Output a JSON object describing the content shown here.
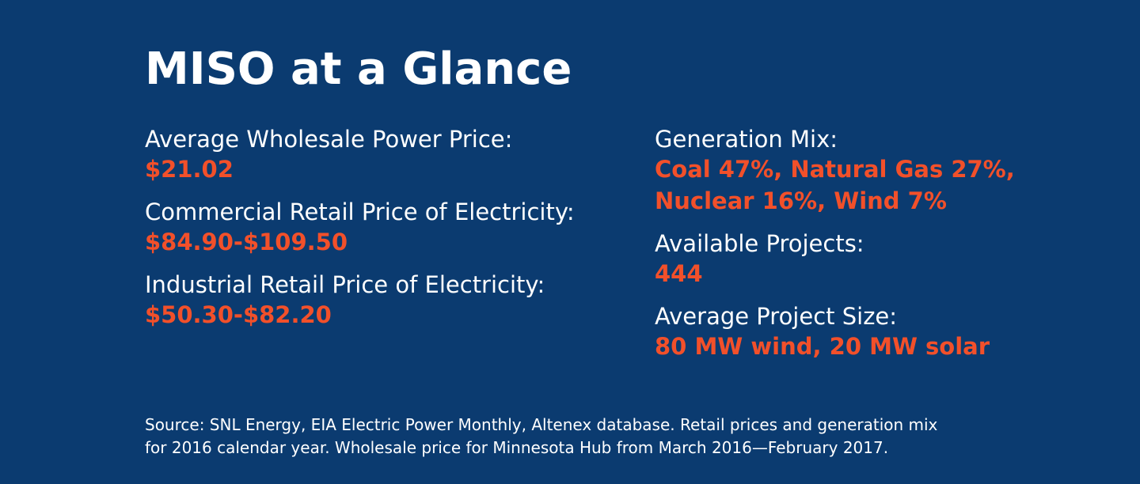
{
  "header": {
    "title": "MISO at a Glance"
  },
  "left": [
    {
      "label": "Average Wholesale Power Price:",
      "value": [
        "$21.02"
      ]
    },
    {
      "label": "Commercial Retail Price of Electricity:",
      "value": [
        "$84.90-$109.50"
      ]
    },
    {
      "label": "Industrial Retail Price of Electricity:",
      "value": [
        "$50.30-$82.20"
      ]
    }
  ],
  "right": [
    {
      "label": "Generation Mix:",
      "value": [
        "Coal 47%, Natural Gas 27%,",
        "Nuclear 16%, Wind 7%"
      ]
    },
    {
      "label": "Available Projects:",
      "value": [
        "444"
      ]
    },
    {
      "label": "Average Project Size:",
      "value": [
        "80 MW wind, 20 MW solar"
      ]
    }
  ],
  "source": [
    "Source: SNL Energy, EIA Electric Power Monthly, Altenex database. Retail prices and generation mix",
    "for 2016 calendar year. Wholesale price for Minnesota Hub from March 2016—February 2017."
  ]
}
